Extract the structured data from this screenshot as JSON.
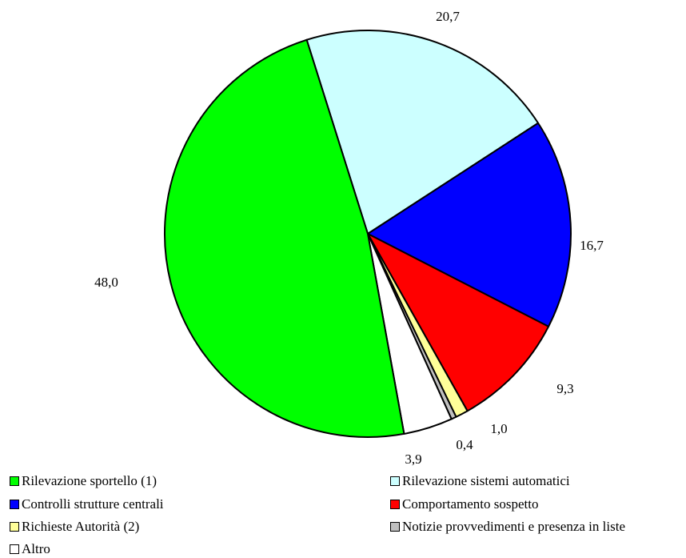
{
  "chart_data": {
    "type": "pie",
    "title": "",
    "slices": [
      {
        "label": "Rilevazione sistemi automatici",
        "value": 20.7,
        "value_label": "20,7",
        "color": "#ccffff"
      },
      {
        "label": "Controlli strutture centrali",
        "value": 16.7,
        "value_label": "16,7",
        "color": "#0000ff"
      },
      {
        "label": "Comportamento sospetto",
        "value": 9.3,
        "value_label": "9,3",
        "color": "#ff0000"
      },
      {
        "label": "Richieste Autorità (2)",
        "value": 1.0,
        "value_label": "1,0",
        "color": "#ffff99"
      },
      {
        "label": "Notizie provvedimenti e presenza in liste",
        "value": 0.4,
        "value_label": "0,4",
        "color": "#c0c0c0"
      },
      {
        "label": "Altro",
        "value": 3.9,
        "value_label": "3,9",
        "color": "#ffffff"
      },
      {
        "label": "Rilevazione sportello (1)",
        "value": 48.0,
        "value_label": "48,0",
        "color": "#00ff00"
      }
    ],
    "legend": {
      "placement": "bottom",
      "entries": [
        {
          "label": "Rilevazione sportello (1)",
          "color": "#00ff00"
        },
        {
          "label": "Rilevazione sistemi automatici",
          "color": "#ccffff"
        },
        {
          "label": "Controlli strutture centrali",
          "color": "#0000ff"
        },
        {
          "label": "Comportamento sospetto",
          "color": "#ff0000"
        },
        {
          "label": "Richieste Autorità (2)",
          "color": "#ffff99"
        },
        {
          "label": "Notizie provvedimenti e presenza in liste",
          "color": "#c0c0c0"
        },
        {
          "label": "Altro",
          "color": "#ffffff"
        }
      ]
    }
  }
}
